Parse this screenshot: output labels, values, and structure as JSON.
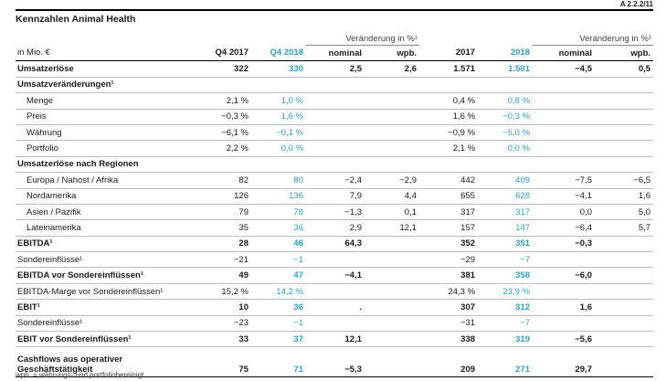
{
  "doc_ref": "A 2.2.2/11",
  "title": "Kennzahlen Animal Health",
  "header": {
    "group_label": "Veränderung in %¹",
    "unit": "in Mio. €",
    "cols": [
      "Q4 2017",
      "Q4 2018",
      "nominal",
      "wpb.",
      "2017",
      "2018",
      "nominal",
      "wpb."
    ]
  },
  "rows": [
    {
      "label": "Umsatzerlöse",
      "style": "main",
      "v": [
        "322",
        "330",
        "2,5",
        "2,6",
        "1.571",
        "1.501",
        "−4,5",
        "0,5"
      ]
    },
    {
      "label": "Umsatzveränderungen¹",
      "style": "grp",
      "v": [
        "",
        "",
        "",
        "",
        "",
        "",
        "",
        ""
      ]
    },
    {
      "label": "Menge",
      "style": "sub",
      "v": [
        "2,1 %",
        "1,0 %",
        "",
        "",
        "0,4 %",
        "0,8 %",
        "",
        ""
      ]
    },
    {
      "label": "Preis",
      "style": "sub",
      "v": [
        "−0,3 %",
        "1,6 %",
        "",
        "",
        "1,6 %",
        "−0,3 %",
        "",
        ""
      ]
    },
    {
      "label": "Währung",
      "style": "sub",
      "v": [
        "−6,1 %",
        "−0,1 %",
        "",
        "",
        "−0,9 %",
        "−5,0 %",
        "",
        ""
      ]
    },
    {
      "label": "Portfolio",
      "style": "sub",
      "v": [
        "2,2 %",
        "0,0 %",
        "",
        "",
        "2,1 %",
        "0,0 %",
        "",
        ""
      ]
    },
    {
      "label": "Umsatzerlöse nach Regionen",
      "style": "grp",
      "v": [
        "",
        "",
        "",
        "",
        "",
        "",
        "",
        ""
      ]
    },
    {
      "label": "Europa / Nahost / Afrika",
      "style": "sub",
      "v": [
        "82",
        "80",
        "−2,4",
        "−2,9",
        "442",
        "409",
        "−7,5",
        "−6,5"
      ]
    },
    {
      "label": "Nordamerika",
      "style": "sub",
      "v": [
        "126",
        "136",
        "7,9",
        "4,4",
        "655",
        "628",
        "−4,1",
        "1,6"
      ]
    },
    {
      "label": "Asien / Pazifik",
      "style": "sub",
      "v": [
        "79",
        "78",
        "−1,3",
        "0,1",
        "317",
        "317",
        "0,0",
        "5,0"
      ]
    },
    {
      "label": "Lateinamerika",
      "style": "sub",
      "v": [
        "35",
        "36",
        "2,9",
        "12,1",
        "157",
        "147",
        "−6,4",
        "5,7"
      ]
    },
    {
      "label": "EBITDA¹",
      "style": "main",
      "v": [
        "28",
        "46",
        "64,3",
        "",
        "352",
        "351",
        "−0,3",
        ""
      ]
    },
    {
      "label": "Sondereinflüsse¹",
      "style": "plain",
      "v": [
        "−21",
        "−1",
        "",
        "",
        "−29",
        "−7",
        "",
        ""
      ]
    },
    {
      "label": "EBITDA vor Sondereinflüssen¹",
      "style": "main",
      "v": [
        "49",
        "47",
        "−4,1",
        "",
        "381",
        "358",
        "−6,0",
        ""
      ]
    },
    {
      "label": "EBITDA-Marge vor Sondereinflüssen¹",
      "style": "plain",
      "v": [
        "15,2 %",
        "14,2 %",
        "",
        "",
        "24,3 %",
        "23,9 %",
        "",
        ""
      ]
    },
    {
      "label": "EBIT¹",
      "style": "main",
      "v": [
        "10",
        "36",
        ".",
        "",
        "307",
        "312",
        "1,6",
        ""
      ]
    },
    {
      "label": "Sondereinflüsse¹",
      "style": "plain",
      "v": [
        "−23",
        "−1",
        "",
        "",
        "−31",
        "−7",
        "",
        ""
      ]
    },
    {
      "label": "EBIT vor Sondereinflüssen¹",
      "style": "main",
      "v": [
        "33",
        "37",
        "12,1",
        "",
        "338",
        "319",
        "−5,6",
        ""
      ]
    },
    {
      "label": "Cashflows aus operativer Geschäftstätigkeit",
      "style": "main last",
      "v": [
        "75",
        "71",
        "−5,3",
        "",
        "209",
        "271",
        "29,7",
        ""
      ]
    }
  ],
  "footnote": "wpb. = währungs- und portfoliobereinigt"
}
